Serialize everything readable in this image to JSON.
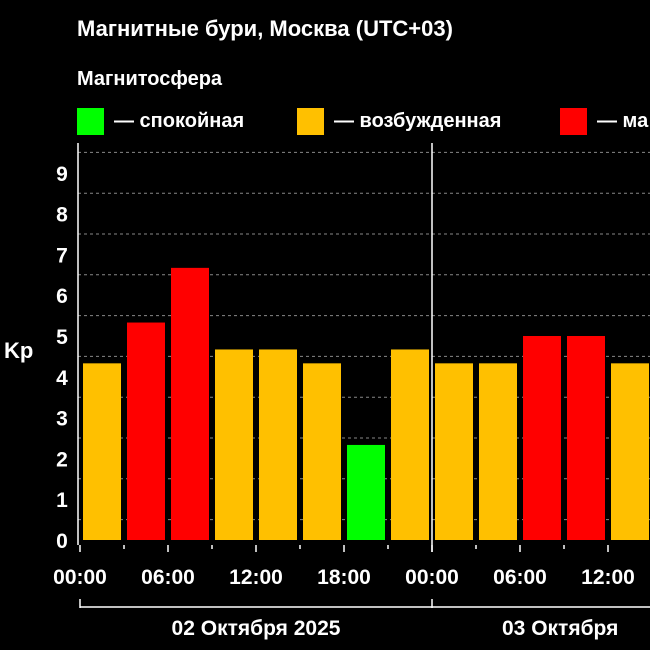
{
  "chart_data": {
    "type": "bar",
    "title": "Магнитные бури, Москва (UTC+03)",
    "legend_title": "Магнитосфера",
    "legend": [
      {
        "label": "— спокойная",
        "color": "#00ff00"
      },
      {
        "label": "— возбужденная",
        "color": "#ffc000"
      },
      {
        "label": "— ма",
        "color": "#ff0000"
      }
    ],
    "ylabel": "Kp",
    "ylim": [
      0,
      9
    ],
    "yticks": [
      "0",
      "1",
      "2",
      "3",
      "4",
      "5",
      "6",
      "7",
      "8",
      "9"
    ],
    "xticks": [
      "00:00",
      "06:00",
      "12:00",
      "18:00",
      "00:00",
      "06:00",
      "12:00"
    ],
    "day_labels": [
      "02 Октября 2025",
      "03 Октября"
    ],
    "bars": [
      {
        "day": 0,
        "slot": 0,
        "value": 4.33,
        "color": "#ffc000"
      },
      {
        "day": 0,
        "slot": 1,
        "value": 5.33,
        "color": "#ff0000"
      },
      {
        "day": 0,
        "slot": 2,
        "value": 6.67,
        "color": "#ff0000"
      },
      {
        "day": 0,
        "slot": 3,
        "value": 4.67,
        "color": "#ffc000"
      },
      {
        "day": 0,
        "slot": 4,
        "value": 4.67,
        "color": "#ffc000"
      },
      {
        "day": 0,
        "slot": 5,
        "value": 4.33,
        "color": "#ffc000"
      },
      {
        "day": 0,
        "slot": 6,
        "value": 2.33,
        "color": "#00ff00"
      },
      {
        "day": 0,
        "slot": 7,
        "value": 4.67,
        "color": "#ffc000"
      },
      {
        "day": 1,
        "slot": 0,
        "value": 4.33,
        "color": "#ffc000"
      },
      {
        "day": 1,
        "slot": 1,
        "value": 4.33,
        "color": "#ffc000"
      },
      {
        "day": 1,
        "slot": 2,
        "value": 5.0,
        "color": "#ff0000"
      },
      {
        "day": 1,
        "slot": 3,
        "value": 5.0,
        "color": "#ff0000"
      },
      {
        "day": 1,
        "slot": 4,
        "value": 4.33,
        "color": "#ffc000"
      }
    ]
  }
}
